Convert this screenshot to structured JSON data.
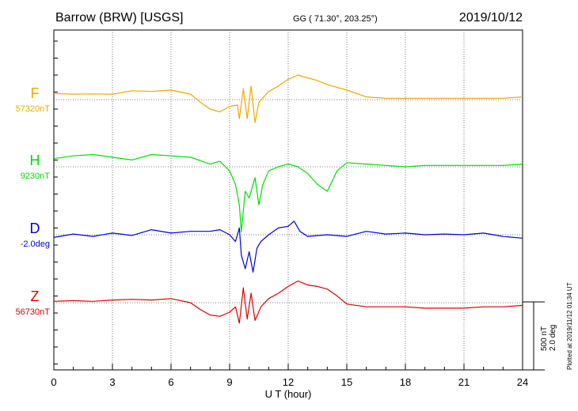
{
  "header": {
    "station": "Barrow (BRW)  [USGS]",
    "coords": "GG ( 71.30°, 203.25°)",
    "date": "2019/10/12"
  },
  "side_note": "Plotted at 2019/11/12 01:34  UT",
  "scale_note": {
    "line1": "500 nT",
    "line2": "2.0 deg"
  },
  "colors": {
    "F": "#f0a800",
    "H": "#00dd00",
    "D": "#0000dd",
    "Z": "#dd0000"
  },
  "chart_data": {
    "type": "line",
    "title": "Barrow (BRW)  [USGS]",
    "xlabel": "U T (hour)",
    "xlim": [
      0,
      24
    ],
    "xticks": [
      "0",
      "3",
      "6",
      "9",
      "12",
      "15",
      "18",
      "21",
      "24"
    ],
    "scale": "500 nT / 2.0 deg per baseline spacing",
    "grid": true,
    "series": [
      {
        "name": "F",
        "baseline_label": "57320nT",
        "baseline": 57320,
        "unit": "nT",
        "points": [
          [
            0,
            57365
          ],
          [
            1,
            57360
          ],
          [
            2,
            57362
          ],
          [
            3,
            57360
          ],
          [
            4,
            57385
          ],
          [
            5,
            57380
          ],
          [
            6,
            57390
          ],
          [
            7,
            57360
          ],
          [
            7.5,
            57300
          ],
          [
            8,
            57250
          ],
          [
            8.5,
            57230
          ],
          [
            9,
            57270
          ],
          [
            9.4,
            57280
          ],
          [
            9.5,
            57180
          ],
          [
            9.7,
            57400
          ],
          [
            9.9,
            57180
          ],
          [
            10.1,
            57420
          ],
          [
            10.3,
            57150
          ],
          [
            10.5,
            57300
          ],
          [
            11,
            57380
          ],
          [
            11.5,
            57420
          ],
          [
            12,
            57470
          ],
          [
            12.5,
            57500
          ],
          [
            13,
            57480
          ],
          [
            13.5,
            57460
          ],
          [
            14,
            57430
          ],
          [
            15,
            57390
          ],
          [
            16,
            57340
          ],
          [
            17,
            57330
          ],
          [
            18,
            57330
          ],
          [
            19,
            57330
          ],
          [
            20,
            57330
          ],
          [
            21,
            57330
          ],
          [
            22,
            57330
          ],
          [
            23,
            57330
          ],
          [
            24,
            57340
          ]
        ]
      },
      {
        "name": "H",
        "baseline_label": "9230nT",
        "baseline": 9230,
        "unit": "nT",
        "points": [
          [
            0,
            9290
          ],
          [
            1,
            9310
          ],
          [
            2,
            9320
          ],
          [
            3,
            9300
          ],
          [
            4,
            9280
          ],
          [
            5,
            9320
          ],
          [
            6,
            9310
          ],
          [
            7,
            9300
          ],
          [
            8,
            9250
          ],
          [
            8.5,
            9270
          ],
          [
            9,
            9200
          ],
          [
            9.3,
            9100
          ],
          [
            9.5,
            8950
          ],
          [
            9.6,
            8750
          ],
          [
            9.8,
            9050
          ],
          [
            10,
            9000
          ],
          [
            10.3,
            9150
          ],
          [
            10.5,
            8950
          ],
          [
            10.7,
            9100
          ],
          [
            11,
            9200
          ],
          [
            11.5,
            9230
          ],
          [
            12,
            9250
          ],
          [
            12.5,
            9230
          ],
          [
            13,
            9180
          ],
          [
            13.5,
            9100
          ],
          [
            14,
            9050
          ],
          [
            14.5,
            9200
          ],
          [
            15,
            9260
          ],
          [
            16,
            9250
          ],
          [
            17,
            9240
          ],
          [
            18,
            9230
          ],
          [
            19,
            9240
          ],
          [
            20,
            9240
          ],
          [
            21,
            9240
          ],
          [
            22,
            9240
          ],
          [
            23,
            9240
          ],
          [
            24,
            9250
          ]
        ]
      },
      {
        "name": "D",
        "baseline_label": "-2.0deg",
        "baseline": -2.0,
        "unit": "deg",
        "points": [
          [
            0,
            -2.08
          ],
          [
            1,
            -1.98
          ],
          [
            2,
            -2.05
          ],
          [
            3,
            -1.95
          ],
          [
            4,
            -2.02
          ],
          [
            5,
            -1.85
          ],
          [
            6,
            -1.95
          ],
          [
            7,
            -1.9
          ],
          [
            8,
            -1.9
          ],
          [
            8.5,
            -1.85
          ],
          [
            9,
            -2.0
          ],
          [
            9.3,
            -2.2
          ],
          [
            9.5,
            -1.8
          ],
          [
            9.6,
            -2.6
          ],
          [
            9.8,
            -3.0
          ],
          [
            10,
            -2.5
          ],
          [
            10.2,
            -3.1
          ],
          [
            10.4,
            -2.4
          ],
          [
            10.6,
            -2.2
          ],
          [
            11,
            -2.0
          ],
          [
            11.5,
            -1.8
          ],
          [
            12,
            -1.75
          ],
          [
            12.3,
            -1.6
          ],
          [
            12.6,
            -1.9
          ],
          [
            13,
            -2.05
          ],
          [
            14,
            -2.0
          ],
          [
            15,
            -2.05
          ],
          [
            16,
            -1.9
          ],
          [
            17,
            -1.98
          ],
          [
            18,
            -1.95
          ],
          [
            19,
            -2.0
          ],
          [
            20,
            -1.98
          ],
          [
            21,
            -2.0
          ],
          [
            22,
            -1.95
          ],
          [
            23,
            -2.05
          ],
          [
            24,
            -2.1
          ]
        ]
      },
      {
        "name": "Z",
        "baseline_label": "56730nT",
        "baseline": 56730,
        "unit": "nT",
        "points": [
          [
            0,
            56740
          ],
          [
            1,
            56745
          ],
          [
            2,
            56740
          ],
          [
            3,
            56750
          ],
          [
            4,
            56755
          ],
          [
            5,
            56750
          ],
          [
            6,
            56760
          ],
          [
            7,
            56730
          ],
          [
            7.5,
            56680
          ],
          [
            8,
            56640
          ],
          [
            8.5,
            56630
          ],
          [
            9,
            56660
          ],
          [
            9.3,
            56700
          ],
          [
            9.5,
            56580
          ],
          [
            9.7,
            56840
          ],
          [
            9.9,
            56610
          ],
          [
            10.1,
            56800
          ],
          [
            10.3,
            56600
          ],
          [
            10.6,
            56700
          ],
          [
            11,
            56760
          ],
          [
            11.5,
            56800
          ],
          [
            12,
            56850
          ],
          [
            12.5,
            56890
          ],
          [
            13,
            56860
          ],
          [
            13.5,
            56850
          ],
          [
            14,
            56830
          ],
          [
            14.5,
            56780
          ],
          [
            15,
            56720
          ],
          [
            16,
            56700
          ],
          [
            17,
            56700
          ],
          [
            18,
            56700
          ],
          [
            19,
            56690
          ],
          [
            20,
            56690
          ],
          [
            21,
            56690
          ],
          [
            22,
            56700
          ],
          [
            23,
            56700
          ],
          [
            24,
            56710
          ]
        ]
      }
    ]
  }
}
